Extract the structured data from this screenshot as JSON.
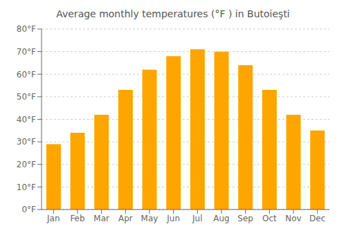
{
  "chart_data": {
    "type": "bar",
    "title": "Average monthly temperatures (°F ) in Butoieşti",
    "categories": [
      "Jan",
      "Feb",
      "Mar",
      "Apr",
      "May",
      "Jun",
      "Jul",
      "Aug",
      "Sep",
      "Oct",
      "Nov",
      "Dec"
    ],
    "values": [
      29,
      34,
      42,
      53,
      62,
      68,
      71,
      70,
      64,
      53,
      42,
      35
    ],
    "color": "#FFA500",
    "ylim": [
      0,
      80
    ],
    "yticks": [
      {
        "value": 0,
        "label": "0°F"
      },
      {
        "value": 10,
        "label": "10°F"
      },
      {
        "value": 20,
        "label": "20°F"
      },
      {
        "value": 30,
        "label": "30°F"
      },
      {
        "value": 40,
        "label": "40°F"
      },
      {
        "value": 50,
        "label": "50°F"
      },
      {
        "value": 60,
        "label": "60°F"
      },
      {
        "value": 70,
        "label": "70°F"
      },
      {
        "value": 80,
        "label": "80°F"
      }
    ],
    "grid": true
  }
}
